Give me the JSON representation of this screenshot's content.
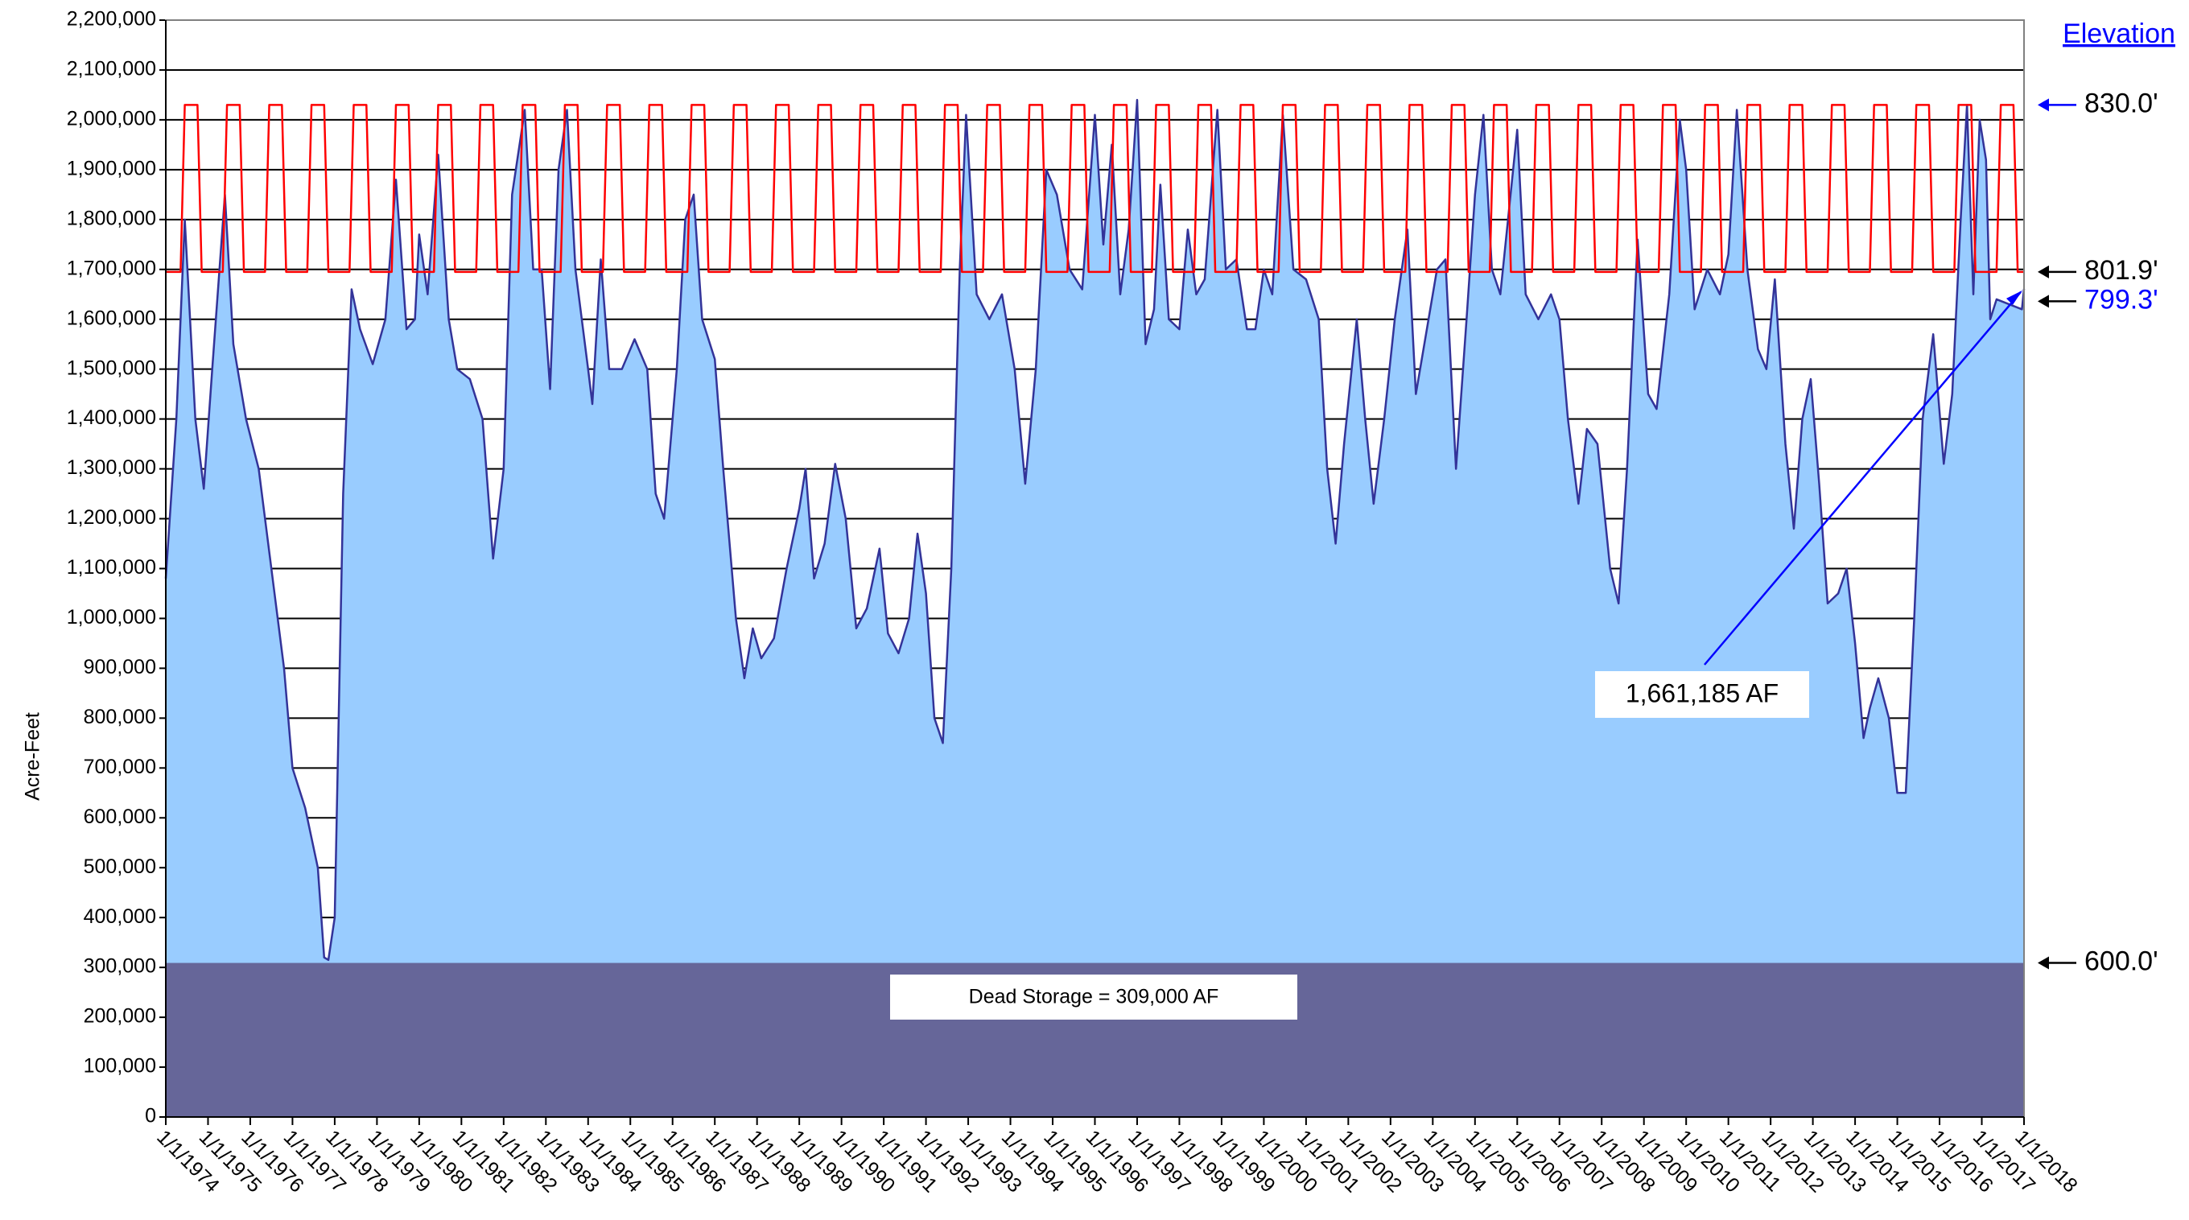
{
  "chart_data": {
    "type": "area",
    "y_label": "Acre-Feet",
    "ylim": [
      0,
      2200000
    ],
    "yticks": [
      {
        "value": 0,
        "label": "0"
      },
      {
        "value": 100000,
        "label": "100,000"
      },
      {
        "value": 200000,
        "label": "200,000"
      },
      {
        "value": 300000,
        "label": "300,000"
      },
      {
        "value": 400000,
        "label": "400,000"
      },
      {
        "value": 500000,
        "label": "500,000"
      },
      {
        "value": 600000,
        "label": "600,000"
      },
      {
        "value": 700000,
        "label": "700,000"
      },
      {
        "value": 800000,
        "label": "800,000"
      },
      {
        "value": 900000,
        "label": "900,000"
      },
      {
        "value": 1000000,
        "label": "1,000,000"
      },
      {
        "value": 1100000,
        "label": "1,100,000"
      },
      {
        "value": 1200000,
        "label": "1,200,000"
      },
      {
        "value": 1300000,
        "label": "1,300,000"
      },
      {
        "value": 1400000,
        "label": "1,400,000"
      },
      {
        "value": 1500000,
        "label": "1,500,000"
      },
      {
        "value": 1600000,
        "label": "1,600,000"
      },
      {
        "value": 1700000,
        "label": "1,700,000"
      },
      {
        "value": 1800000,
        "label": "1,800,000"
      },
      {
        "value": 1900000,
        "label": "1,900,000"
      },
      {
        "value": 2000000,
        "label": "2,000,000"
      },
      {
        "value": 2100000,
        "label": "2,100,000"
      },
      {
        "value": 2200000,
        "label": "2,200,000"
      }
    ],
    "xlim": [
      1974,
      2018
    ],
    "xticks": [
      {
        "value": 1974,
        "label": "1/1/1974"
      },
      {
        "value": 1975,
        "label": "1/1/1975"
      },
      {
        "value": 1976,
        "label": "1/1/1976"
      },
      {
        "value": 1977,
        "label": "1/1/1977"
      },
      {
        "value": 1978,
        "label": "1/1/1978"
      },
      {
        "value": 1979,
        "label": "1/1/1979"
      },
      {
        "value": 1980,
        "label": "1/1/1980"
      },
      {
        "value": 1981,
        "label": "1/1/1981"
      },
      {
        "value": 1982,
        "label": "1/1/1982"
      },
      {
        "value": 1983,
        "label": "1/1/1983"
      },
      {
        "value": 1984,
        "label": "1/1/1984"
      },
      {
        "value": 1985,
        "label": "1/1/1985"
      },
      {
        "value": 1986,
        "label": "1/1/1986"
      },
      {
        "value": 1987,
        "label": "1/1/1987"
      },
      {
        "value": 1988,
        "label": "1/1/1988"
      },
      {
        "value": 1989,
        "label": "1/1/1989"
      },
      {
        "value": 1990,
        "label": "1/1/1990"
      },
      {
        "value": 1991,
        "label": "1/1/1991"
      },
      {
        "value": 1992,
        "label": "1/1/1992"
      },
      {
        "value": 1993,
        "label": "1/1/1993"
      },
      {
        "value": 1994,
        "label": "1/1/1994"
      },
      {
        "value": 1995,
        "label": "1/1/1995"
      },
      {
        "value": 1996,
        "label": "1/1/1996"
      },
      {
        "value": 1997,
        "label": "1/1/1997"
      },
      {
        "value": 1998,
        "label": "1/1/1998"
      },
      {
        "value": 1999,
        "label": "1/1/1999"
      },
      {
        "value": 2000,
        "label": "1/1/2000"
      },
      {
        "value": 2001,
        "label": "1/1/2001"
      },
      {
        "value": 2002,
        "label": "1/1/2002"
      },
      {
        "value": 2003,
        "label": "1/1/2003"
      },
      {
        "value": 2004,
        "label": "1/1/2004"
      },
      {
        "value": 2005,
        "label": "1/1/2005"
      },
      {
        "value": 2006,
        "label": "1/1/2006"
      },
      {
        "value": 2007,
        "label": "1/1/2007"
      },
      {
        "value": 2008,
        "label": "1/1/2008"
      },
      {
        "value": 2009,
        "label": "1/1/2009"
      },
      {
        "value": 2010,
        "label": "1/1/2010"
      },
      {
        "value": 2011,
        "label": "1/1/2011"
      },
      {
        "value": 2012,
        "label": "1/1/2012"
      },
      {
        "value": 2013,
        "label": "1/1/2013"
      },
      {
        "value": 2014,
        "label": "1/1/2014"
      },
      {
        "value": 2015,
        "label": "1/1/2015"
      },
      {
        "value": 2016,
        "label": "1/1/2016"
      },
      {
        "value": 2017,
        "label": "1/1/2017"
      },
      {
        "value": 2018,
        "label": "1/1/2018"
      }
    ],
    "grid": true,
    "series": [
      {
        "type": "area",
        "color": "#333399",
        "fill": "#99ccff",
        "x": [
          1974.0,
          1974.25,
          1974.45,
          1974.7,
          1974.9,
          1975.1,
          1975.4,
          1975.6,
          1975.9,
          1976.2,
          1976.5,
          1976.8,
          1977.0,
          1977.3,
          1977.6,
          1977.75,
          1977.85,
          1978.0,
          1978.2,
          1978.4,
          1978.6,
          1978.9,
          1979.2,
          1979.45,
          1979.7,
          1979.9,
          1980.0,
          1980.2,
          1980.45,
          1980.7,
          1980.9,
          1981.2,
          1981.5,
          1981.75,
          1982.0,
          1982.2,
          1982.5,
          1982.7,
          1982.9,
          1983.1,
          1983.3,
          1983.5,
          1983.7,
          1984.0,
          1984.1,
          1984.3,
          1984.5,
          1984.8,
          1985.1,
          1985.4,
          1985.6,
          1985.8,
          1986.1,
          1986.3,
          1986.5,
          1986.7,
          1987.0,
          1987.2,
          1987.5,
          1987.7,
          1987.9,
          1988.1,
          1988.4,
          1988.7,
          1989.0,
          1989.15,
          1989.35,
          1989.6,
          1989.85,
          1990.1,
          1990.35,
          1990.6,
          1990.9,
          1991.1,
          1991.35,
          1991.6,
          1991.8,
          1992.0,
          1992.2,
          1992.4,
          1992.6,
          1992.8,
          1992.95,
          1993.2,
          1993.5,
          1993.8,
          1994.1,
          1994.35,
          1994.6,
          1994.85,
          1995.1,
          1995.4,
          1995.7,
          1996.0,
          1996.2,
          1996.4,
          1996.6,
          1996.8,
          1997.0,
          1997.2,
          1997.4,
          1997.55,
          1997.75,
          1998.0,
          1998.2,
          1998.4,
          1998.6,
          1998.9,
          1999.1,
          1999.35,
          1999.6,
          1999.8,
          2000.0,
          2000.2,
          2000.45,
          2000.7,
          2001.0,
          2001.3,
          2001.5,
          2001.7,
          2001.9,
          2002.2,
          2002.4,
          2002.6,
          2002.85,
          2003.1,
          2003.4,
          2003.6,
          2003.9,
          2004.1,
          2004.3,
          2004.55,
          2004.8,
          2005.0,
          2005.2,
          2005.4,
          2005.6,
          2006.0,
          2006.2,
          2006.5,
          2006.8,
          2007.0,
          2007.2,
          2007.45,
          2007.65,
          2007.9,
          2008.2,
          2008.4,
          2008.6,
          2008.85,
          2009.1,
          2009.3,
          2009.6,
          2009.85,
          2010.0,
          2010.2,
          2010.5,
          2010.8,
          2011.0,
          2011.2,
          2011.45,
          2011.7,
          2011.9,
          2012.1,
          2012.35,
          2012.55,
          2012.75,
          2012.95,
          2013.15,
          2013.35,
          2013.6,
          2013.8,
          2014.0,
          2014.2,
          2014.35,
          2014.55,
          2014.8,
          2015.0,
          2015.2,
          2015.4,
          2015.6,
          2015.85,
          2016.1,
          2016.3,
          2016.5,
          2016.65,
          2016.8,
          2016.95,
          2017.1,
          2017.2,
          2017.35,
          2017.95,
          2018.0
        ],
        "values": [
          1080000,
          1400000,
          1800000,
          1400000,
          1260000,
          1500000,
          1850000,
          1550000,
          1400000,
          1300000,
          1100000,
          900000,
          700000,
          620000,
          500000,
          320000,
          315000,
          400000,
          1250000,
          1660000,
          1580000,
          1510000,
          1600000,
          1880000,
          1580000,
          1600000,
          1770000,
          1650000,
          1930000,
          1600000,
          1500000,
          1480000,
          1400000,
          1120000,
          1300000,
          1850000,
          2020000,
          1700000,
          1700000,
          1460000,
          1900000,
          2020000,
          1700000,
          1500000,
          1430000,
          1720000,
          1500000,
          1500000,
          1560000,
          1500000,
          1250000,
          1200000,
          1500000,
          1800000,
          1850000,
          1600000,
          1520000,
          1300000,
          1000000,
          880000,
          980000,
          920000,
          960000,
          1100000,
          1220000,
          1300000,
          1080000,
          1150000,
          1310000,
          1200000,
          980000,
          1020000,
          1140000,
          970000,
          930000,
          1000000,
          1170000,
          1050000,
          800000,
          750000,
          1100000,
          1700000,
          2010000,
          1650000,
          1600000,
          1650000,
          1500000,
          1270000,
          1500000,
          1900000,
          1850000,
          1700000,
          1660000,
          2010000,
          1750000,
          1950000,
          1650000,
          1780000,
          2040000,
          1550000,
          1620000,
          1870000,
          1600000,
          1580000,
          1780000,
          1650000,
          1680000,
          2020000,
          1700000,
          1720000,
          1580000,
          1580000,
          1700000,
          1650000,
          2010000,
          1700000,
          1680000,
          1600000,
          1300000,
          1150000,
          1350000,
          1600000,
          1400000,
          1230000,
          1400000,
          1600000,
          1780000,
          1450000,
          1600000,
          1700000,
          1720000,
          1300000,
          1600000,
          1850000,
          2010000,
          1700000,
          1650000,
          1980000,
          1650000,
          1600000,
          1650000,
          1600000,
          1400000,
          1230000,
          1380000,
          1350000,
          1100000,
          1030000,
          1300000,
          1760000,
          1450000,
          1420000,
          1650000,
          2000000,
          1900000,
          1620000,
          1700000,
          1650000,
          1730000,
          2020000,
          1700000,
          1540000,
          1500000,
          1680000,
          1350000,
          1180000,
          1400000,
          1480000,
          1270000,
          1030000,
          1050000,
          1100000,
          950000,
          760000,
          820000,
          880000,
          800000,
          650000,
          650000,
          1000000,
          1400000,
          1570000,
          1310000,
          1450000,
          1800000,
          2030000,
          1650000,
          2000000,
          1920000,
          1600000,
          1640000,
          1620000,
          1661185
        ]
      },
      {
        "type": "line",
        "color": "#ff0000",
        "x": [
          1974.0,
          1974.35,
          1974.45,
          1974.75,
          1974.85,
          1975.35,
          1975.45,
          1975.75,
          1975.85,
          1976.35,
          1976.45,
          1976.75,
          1976.85,
          1977.35,
          1977.45,
          1977.75,
          1977.85,
          1978.35,
          1978.45,
          1978.75,
          1978.85,
          1979.35,
          1979.45,
          1979.75,
          1979.85,
          1980.35,
          1980.45,
          1980.75,
          1980.85,
          1981.35,
          1981.45,
          1981.75,
          1981.85,
          1982.35,
          1982.45,
          1982.75,
          1982.85,
          1983.35,
          1983.45,
          1983.75,
          1983.85,
          1984.35,
          1984.45,
          1984.75,
          1984.85,
          1985.35,
          1985.45,
          1985.75,
          1985.85,
          1986.35,
          1986.45,
          1986.75,
          1986.85,
          1987.35,
          1987.45,
          1987.75,
          1987.85,
          1988.35,
          1988.45,
          1988.75,
          1988.85,
          1989.35,
          1989.45,
          1989.75,
          1989.85,
          1990.35,
          1990.45,
          1990.75,
          1990.85,
          1991.35,
          1991.45,
          1991.75,
          1991.85,
          1992.35,
          1992.45,
          1992.75,
          1992.85,
          1993.35,
          1993.45,
          1993.75,
          1993.85,
          1994.35,
          1994.45,
          1994.75,
          1994.85,
          1995.35,
          1995.45,
          1995.75,
          1995.85,
          1996.35,
          1996.45,
          1996.75,
          1996.85,
          1997.35,
          1997.45,
          1997.75,
          1997.85,
          1998.35,
          1998.45,
          1998.75,
          1998.85,
          1999.35,
          1999.45,
          1999.75,
          1999.85,
          2000.35,
          2000.45,
          2000.75,
          2000.85,
          2001.35,
          2001.45,
          2001.75,
          2001.85,
          2002.35,
          2002.45,
          2002.75,
          2002.85,
          2003.35,
          2003.45,
          2003.75,
          2003.85,
          2004.35,
          2004.45,
          2004.75,
          2004.85,
          2005.35,
          2005.45,
          2005.75,
          2005.85,
          2006.35,
          2006.45,
          2006.75,
          2006.85,
          2007.35,
          2007.45,
          2007.75,
          2007.85,
          2008.35,
          2008.45,
          2008.75,
          2008.85,
          2009.35,
          2009.45,
          2009.75,
          2009.85,
          2010.35,
          2010.45,
          2010.75,
          2010.85,
          2011.35,
          2011.45,
          2011.75,
          2011.85,
          2012.35,
          2012.45,
          2012.75,
          2012.85,
          2013.35,
          2013.45,
          2013.75,
          2013.85,
          2014.35,
          2014.45,
          2014.75,
          2014.85,
          2015.35,
          2015.45,
          2015.75,
          2015.85,
          2016.35,
          2016.45,
          2016.75,
          2016.85,
          2017.35,
          2017.45,
          2017.75,
          2017.85,
          2018.0
        ],
        "values": [
          1695000,
          1695000,
          2030000,
          2030000,
          1695000,
          1695000,
          2030000,
          2030000,
          1695000,
          1695000,
          2030000,
          2030000,
          1695000,
          1695000,
          2030000,
          2030000,
          1695000,
          1695000,
          2030000,
          2030000,
          1695000,
          1695000,
          2030000,
          2030000,
          1695000,
          1695000,
          2030000,
          2030000,
          1695000,
          1695000,
          2030000,
          2030000,
          1695000,
          1695000,
          2030000,
          2030000,
          1695000,
          1695000,
          2030000,
          2030000,
          1695000,
          1695000,
          2030000,
          2030000,
          1695000,
          1695000,
          2030000,
          2030000,
          1695000,
          1695000,
          2030000,
          2030000,
          1695000,
          1695000,
          2030000,
          2030000,
          1695000,
          1695000,
          2030000,
          2030000,
          1695000,
          1695000,
          2030000,
          2030000,
          1695000,
          1695000,
          2030000,
          2030000,
          1695000,
          1695000,
          2030000,
          2030000,
          1695000,
          1695000,
          2030000,
          2030000,
          1695000,
          1695000,
          2030000,
          2030000,
          1695000,
          1695000,
          2030000,
          2030000,
          1695000,
          1695000,
          2030000,
          2030000,
          1695000,
          1695000,
          2030000,
          2030000,
          1695000,
          1695000,
          2030000,
          2030000,
          1695000,
          1695000,
          2030000,
          2030000,
          1695000,
          1695000,
          2030000,
          2030000,
          1695000,
          1695000,
          2030000,
          2030000,
          1695000,
          1695000,
          2030000,
          2030000,
          1695000,
          1695000,
          2030000,
          2030000,
          1695000,
          1695000,
          2030000,
          2030000,
          1695000,
          1695000,
          2030000,
          2030000,
          1695000,
          1695000,
          2030000,
          2030000,
          1695000,
          1695000,
          2030000,
          2030000,
          1695000,
          1695000,
          2030000,
          2030000,
          1695000,
          1695000,
          2030000,
          2030000,
          1695000,
          1695000,
          2030000,
          2030000,
          1695000,
          1695000,
          2030000,
          2030000,
          1695000,
          1695000,
          2030000,
          2030000,
          1695000,
          1695000,
          2030000,
          2030000,
          1695000,
          1695000,
          2030000,
          2030000,
          1695000,
          1695000,
          2030000,
          2030000,
          1695000,
          1695000,
          2030000,
          2030000,
          1695000,
          1695000,
          2030000,
          2030000,
          1695000,
          1695000,
          2030000,
          2030000,
          1695000,
          1695000
        ]
      }
    ],
    "dead_storage": {
      "value": 309000,
      "color": "#666699",
      "label": "Dead Storage = 309,000 AF"
    },
    "annotation": {
      "text": "1,661,185 AF",
      "value": 1661185,
      "color": "#0000ff"
    },
    "elevation_title": "Elevation",
    "elevation_marks": [
      {
        "storage": 2030000,
        "label": "830.0'",
        "color": "#000000",
        "arrow_color": "#0000ff"
      },
      {
        "storage": 1695000,
        "label": "801.9'",
        "color": "#000000",
        "arrow_color": "#000000"
      },
      {
        "storage": 1636000,
        "label": "799.3'",
        "color": "#0000ff",
        "arrow_color": "#000000"
      },
      {
        "storage": 309000,
        "label": "600.0'",
        "color": "#000000",
        "arrow_color": "#000000"
      }
    ]
  }
}
